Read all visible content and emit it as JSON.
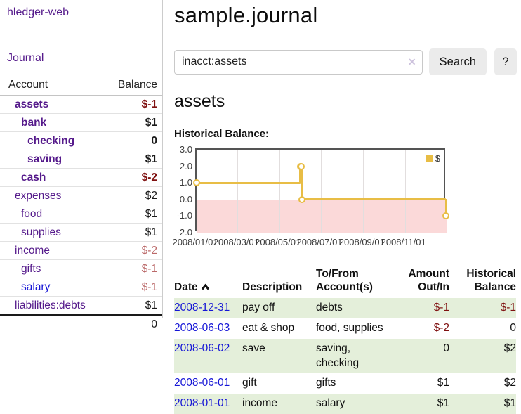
{
  "sidebar": {
    "brand": "hledger-web",
    "nav_journal": "Journal",
    "accounts_header": {
      "account": "Account",
      "balance": "Balance"
    },
    "accounts": [
      {
        "name": "assets",
        "balance": "$-1"
      },
      {
        "name": "bank",
        "balance": "$1"
      },
      {
        "name": "checking",
        "balance": "0"
      },
      {
        "name": "saving",
        "balance": "$1"
      },
      {
        "name": "cash",
        "balance": "$-2"
      },
      {
        "name": "expenses",
        "balance": "$2"
      },
      {
        "name": "food",
        "balance": "$1"
      },
      {
        "name": "supplies",
        "balance": "$1"
      },
      {
        "name": "income",
        "balance": "$-2"
      },
      {
        "name": "gifts",
        "balance": "$-1"
      },
      {
        "name": "salary",
        "balance": "$-1"
      },
      {
        "name": "liabilities:debts",
        "balance": "$1"
      }
    ],
    "total": "0"
  },
  "header": {
    "title": "sample.journal"
  },
  "search": {
    "query": "inacct:assets",
    "clear_icon": "✕",
    "search_button": "Search",
    "help_button": "?"
  },
  "account_page": {
    "heading": "assets"
  },
  "chart_data": {
    "type": "line",
    "step": true,
    "title": "Historical Balance:",
    "series": [
      {
        "name": "$",
        "color": "#e8bd45",
        "points": [
          {
            "x": "2008-01-01",
            "y": 1
          },
          {
            "x": "2008-06-01",
            "y": 2
          },
          {
            "x": "2008-06-02",
            "y": 2
          },
          {
            "x": "2008-06-03",
            "y": 0
          },
          {
            "x": "2008-12-31",
            "y": -1
          }
        ]
      }
    ],
    "xlim": [
      "2008-01-01",
      "2009-01-01"
    ],
    "ylim": [
      -2,
      3
    ],
    "yticks": [
      3,
      2,
      1,
      0,
      -1,
      -2
    ],
    "xticks": [
      {
        "label": "2008/01/01",
        "x": "2008-01-01"
      },
      {
        "label": "2008/03/01",
        "x": "2008-03-01"
      },
      {
        "label": "2008/05/01",
        "x": "2008-05-01"
      },
      {
        "label": "2008/07/01",
        "x": "2008-07-01"
      },
      {
        "label": "2008/09/01",
        "x": "2008-09-01"
      },
      {
        "label": "2008/11/01",
        "x": "2008-11-01"
      }
    ],
    "grid": true,
    "legend_position": "top-right",
    "negative_region_color": "#fbd9d9",
    "zero_line_color": "#a00000"
  },
  "register": {
    "headers": {
      "date": "Date",
      "description": "Description",
      "accounts": "To/From Account(s)",
      "amount": "Amount Out/In",
      "balance": "Historical Balance"
    },
    "rows": [
      {
        "date": "2008-12-31",
        "description": "pay off",
        "accounts": "debts",
        "amount": "$-1",
        "balance": "$-1"
      },
      {
        "date": "2008-06-03",
        "description": "eat & shop",
        "accounts": "food, supplies",
        "amount": "$-2",
        "balance": "0"
      },
      {
        "date": "2008-06-02",
        "description": "save",
        "accounts": "saving, checking",
        "amount": "0",
        "balance": "$2"
      },
      {
        "date": "2008-06-01",
        "description": "gift",
        "accounts": "gifts",
        "amount": "$1",
        "balance": "$2"
      },
      {
        "date": "2008-01-01",
        "description": "income",
        "accounts": "salary",
        "amount": "$1",
        "balance": "$1"
      }
    ]
  },
  "colors": {
    "link_purple": "#551a8b",
    "link_blue": "#1515d6",
    "negative_dark": "#7f1010",
    "negative_light": "#bb6a6a",
    "row_green": "#e4efda",
    "chart_line": "#e8bd45"
  }
}
